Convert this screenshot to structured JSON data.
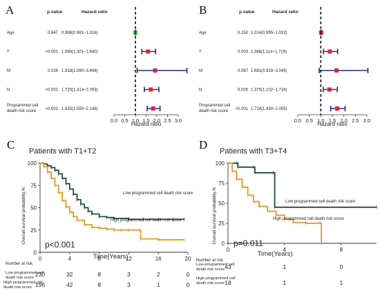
{
  "panels": {
    "A": {
      "letter": "A",
      "header_p": "p value",
      "header_hr": "Hazard ratio",
      "xlabel": "Hazard ratio",
      "xticks": [
        "0.0",
        "0.5",
        "1.0",
        "1.5",
        "2.0",
        "2.5",
        "3.0"
      ],
      "rows": [
        {
          "label": [
            "Age"
          ],
          "p": "0.847",
          "hr_text": "0.998(0.981~1.016)"
        },
        {
          "label": [
            "T"
          ],
          "p": "<0.001",
          "hr_text": "1.589(1.301~1.940)"
        },
        {
          "label": [
            "M"
          ],
          "p": "0.026",
          "hr_text": "1.918(1.080~3.406)"
        },
        {
          "label": [
            "N"
          ],
          "p": "<0.001",
          "hr_text": "1.720(1.414~2.093)"
        },
        {
          "label": [
            "Programmed cell",
            "death risk score"
          ],
          "p": "<0.001",
          "hr_text": "1.825(1.550~2.148)"
        }
      ]
    },
    "B": {
      "letter": "B",
      "header_p": "p value",
      "header_hr": "Hazard ratio",
      "xlabel": "Hazard ratio",
      "xticks": [
        "0.0",
        "0.5",
        "1.0",
        "1.5",
        "2.0",
        "2.5",
        "3.0"
      ],
      "rows": [
        {
          "label": [
            "Age"
          ],
          "p": "0.150",
          "hr_text": "1.014(0.995~1.032)"
        },
        {
          "label": [
            "T"
          ],
          "p": "0.003",
          "hr_text": "1.388(1.114~1.729)"
        },
        {
          "label": [
            "M"
          ],
          "p": "0.087",
          "hr_text": "1.681(0.928~3.045)"
        },
        {
          "label": [
            "N"
          ],
          "p": "0.005",
          "hr_text": "1.375(1.102~1.716)"
        },
        {
          "label": [
            "Programmed cell",
            "death risk score"
          ],
          "p": "<0.001",
          "hr_text": "1.714(1.430~2.055)"
        }
      ]
    },
    "C": {
      "letter": "C",
      "title": "Patients with T1+T2",
      "ylabel": "Overall survival probability,%",
      "xlabel": "Time(Years)",
      "yticks": [
        "0",
        "25",
        "50",
        "75",
        "100"
      ],
      "xticks": [
        "0",
        "4",
        "8",
        "12",
        "16",
        "20"
      ],
      "pvalue": "p<0.001",
      "legend_low": "Low programmed cell death risk score",
      "legend_high": "High programmed cell death risk score",
      "risk_header": "Number at risk",
      "risk_low_label": [
        "Low programmed cell",
        "death risk score"
      ],
      "risk_high_label": [
        "High programmed cell",
        "death risk score"
      ],
      "risk_low": [
        "230",
        "32",
        "8",
        "3",
        "2",
        "0"
      ],
      "risk_high": [
        "196",
        "42",
        "8",
        "3",
        "1",
        "0"
      ]
    },
    "D": {
      "letter": "D",
      "title": "Patients with T3+T4",
      "ylabel": "Overall survival probability,%",
      "xlabel": "Time(Years)",
      "yticks": [
        "0",
        "25",
        "50",
        "75",
        "100"
      ],
      "xticks": [
        "0",
        "4",
        "8"
      ],
      "pvalue": "p=0.011",
      "legend_low": "Low programmed cell death risk score",
      "legend_high": "High programmed cell death risk score",
      "risk_header": "Number at risk",
      "risk_low_label": [
        "Low programmed cell",
        "death risk score"
      ],
      "risk_high_label": [
        "High programmed cell",
        "death risk score"
      ],
      "risk_low": [
        "43",
        "1",
        "0"
      ],
      "risk_high": [
        "18",
        "1",
        "1"
      ]
    }
  },
  "colors": {
    "ci_line": "#1f2a8c",
    "point": "#e0282e",
    "point_nonsig": "#2ecc40",
    "low_curve": "#1e4d40",
    "high_curve": "#e8981c"
  },
  "chart_data": [
    {
      "type": "forest",
      "xlabel": "Hazard ratio",
      "xlim": [
        0,
        3.0
      ],
      "reference": 1.0,
      "categories": [
        "Age",
        "T",
        "M",
        "N",
        "Programmed cell death risk score"
      ],
      "hr": [
        0.998,
        1.589,
        1.918,
        1.72,
        1.825
      ],
      "lower": [
        0.981,
        1.301,
        1.08,
        1.414,
        1.55
      ],
      "upper": [
        1.016,
        1.94,
        3.406,
        2.093,
        2.148
      ],
      "p": [
        "0.847",
        "<0.001",
        "0.026",
        "<0.001",
        "<0.001"
      ]
    },
    {
      "type": "forest",
      "xlabel": "Hazard ratio",
      "xlim": [
        0,
        3.0
      ],
      "reference": 1.0,
      "categories": [
        "Age",
        "T",
        "M",
        "N",
        "Programmed cell death risk score"
      ],
      "hr": [
        1.014,
        1.388,
        1.681,
        1.375,
        1.714
      ],
      "lower": [
        0.995,
        1.114,
        0.928,
        1.102,
        1.43
      ],
      "upper": [
        1.032,
        1.729,
        3.045,
        1.716,
        2.055
      ],
      "p": [
        "0.150",
        "0.003",
        "0.087",
        "0.005",
        "<0.001"
      ]
    },
    {
      "type": "line",
      "title": "Patients with T1+T2",
      "xlabel": "Time(Years)",
      "ylabel": "Overall survival probability,%",
      "xlim": [
        0,
        20
      ],
      "ylim": [
        0,
        100
      ],
      "series": [
        {
          "name": "Low programmed cell death risk score",
          "x": [
            0,
            0.5,
            1,
            1.5,
            2,
            2.5,
            3,
            3.5,
            4,
            4.5,
            5,
            5.5,
            6,
            6.5,
            7,
            8,
            9,
            10,
            12,
            14,
            16,
            18,
            19.5
          ],
          "y": [
            100,
            99,
            97,
            95,
            92,
            88,
            83,
            77,
            71,
            65,
            59,
            54,
            50,
            46,
            43,
            40,
            39,
            38,
            37,
            37,
            37,
            37,
            37
          ]
        },
        {
          "name": "High programmed cell death risk score",
          "x": [
            0,
            0.5,
            1,
            1.5,
            2,
            2.5,
            3,
            3.5,
            4,
            4.5,
            5,
            6,
            7,
            8,
            9,
            10,
            11,
            12,
            13.5,
            13.6,
            16,
            19.5
          ],
          "y": [
            100,
            96,
            90,
            83,
            75,
            67,
            58,
            51,
            45,
            40,
            36,
            31,
            28,
            27,
            26,
            25,
            25,
            25,
            25,
            15,
            14,
            14
          ]
        }
      ]
    },
    {
      "type": "line",
      "title": "Patients with T3+T4",
      "xlabel": "Time(Years)",
      "ylabel": "Overall survival probability,%",
      "xlim": [
        0,
        10.5
      ],
      "ylim": [
        0,
        100
      ],
      "series": [
        {
          "name": "Low programmed cell death risk score",
          "x": [
            0,
            0.6,
            0.7,
            1.8,
            1.9,
            3.2,
            3.3,
            10.5
          ],
          "y": [
            100,
            100,
            95,
            95,
            88,
            88,
            45,
            45
          ]
        },
        {
          "name": "High programmed cell death risk score",
          "x": [
            0,
            0.3,
            0.6,
            1,
            1.4,
            1.8,
            2.2,
            2.8,
            3.4,
            4,
            4.6,
            5.5,
            6.5,
            6.6
          ],
          "y": [
            100,
            90,
            80,
            70,
            60,
            52,
            46,
            40,
            35,
            30,
            26,
            25,
            25,
            0
          ]
        }
      ]
    }
  ]
}
